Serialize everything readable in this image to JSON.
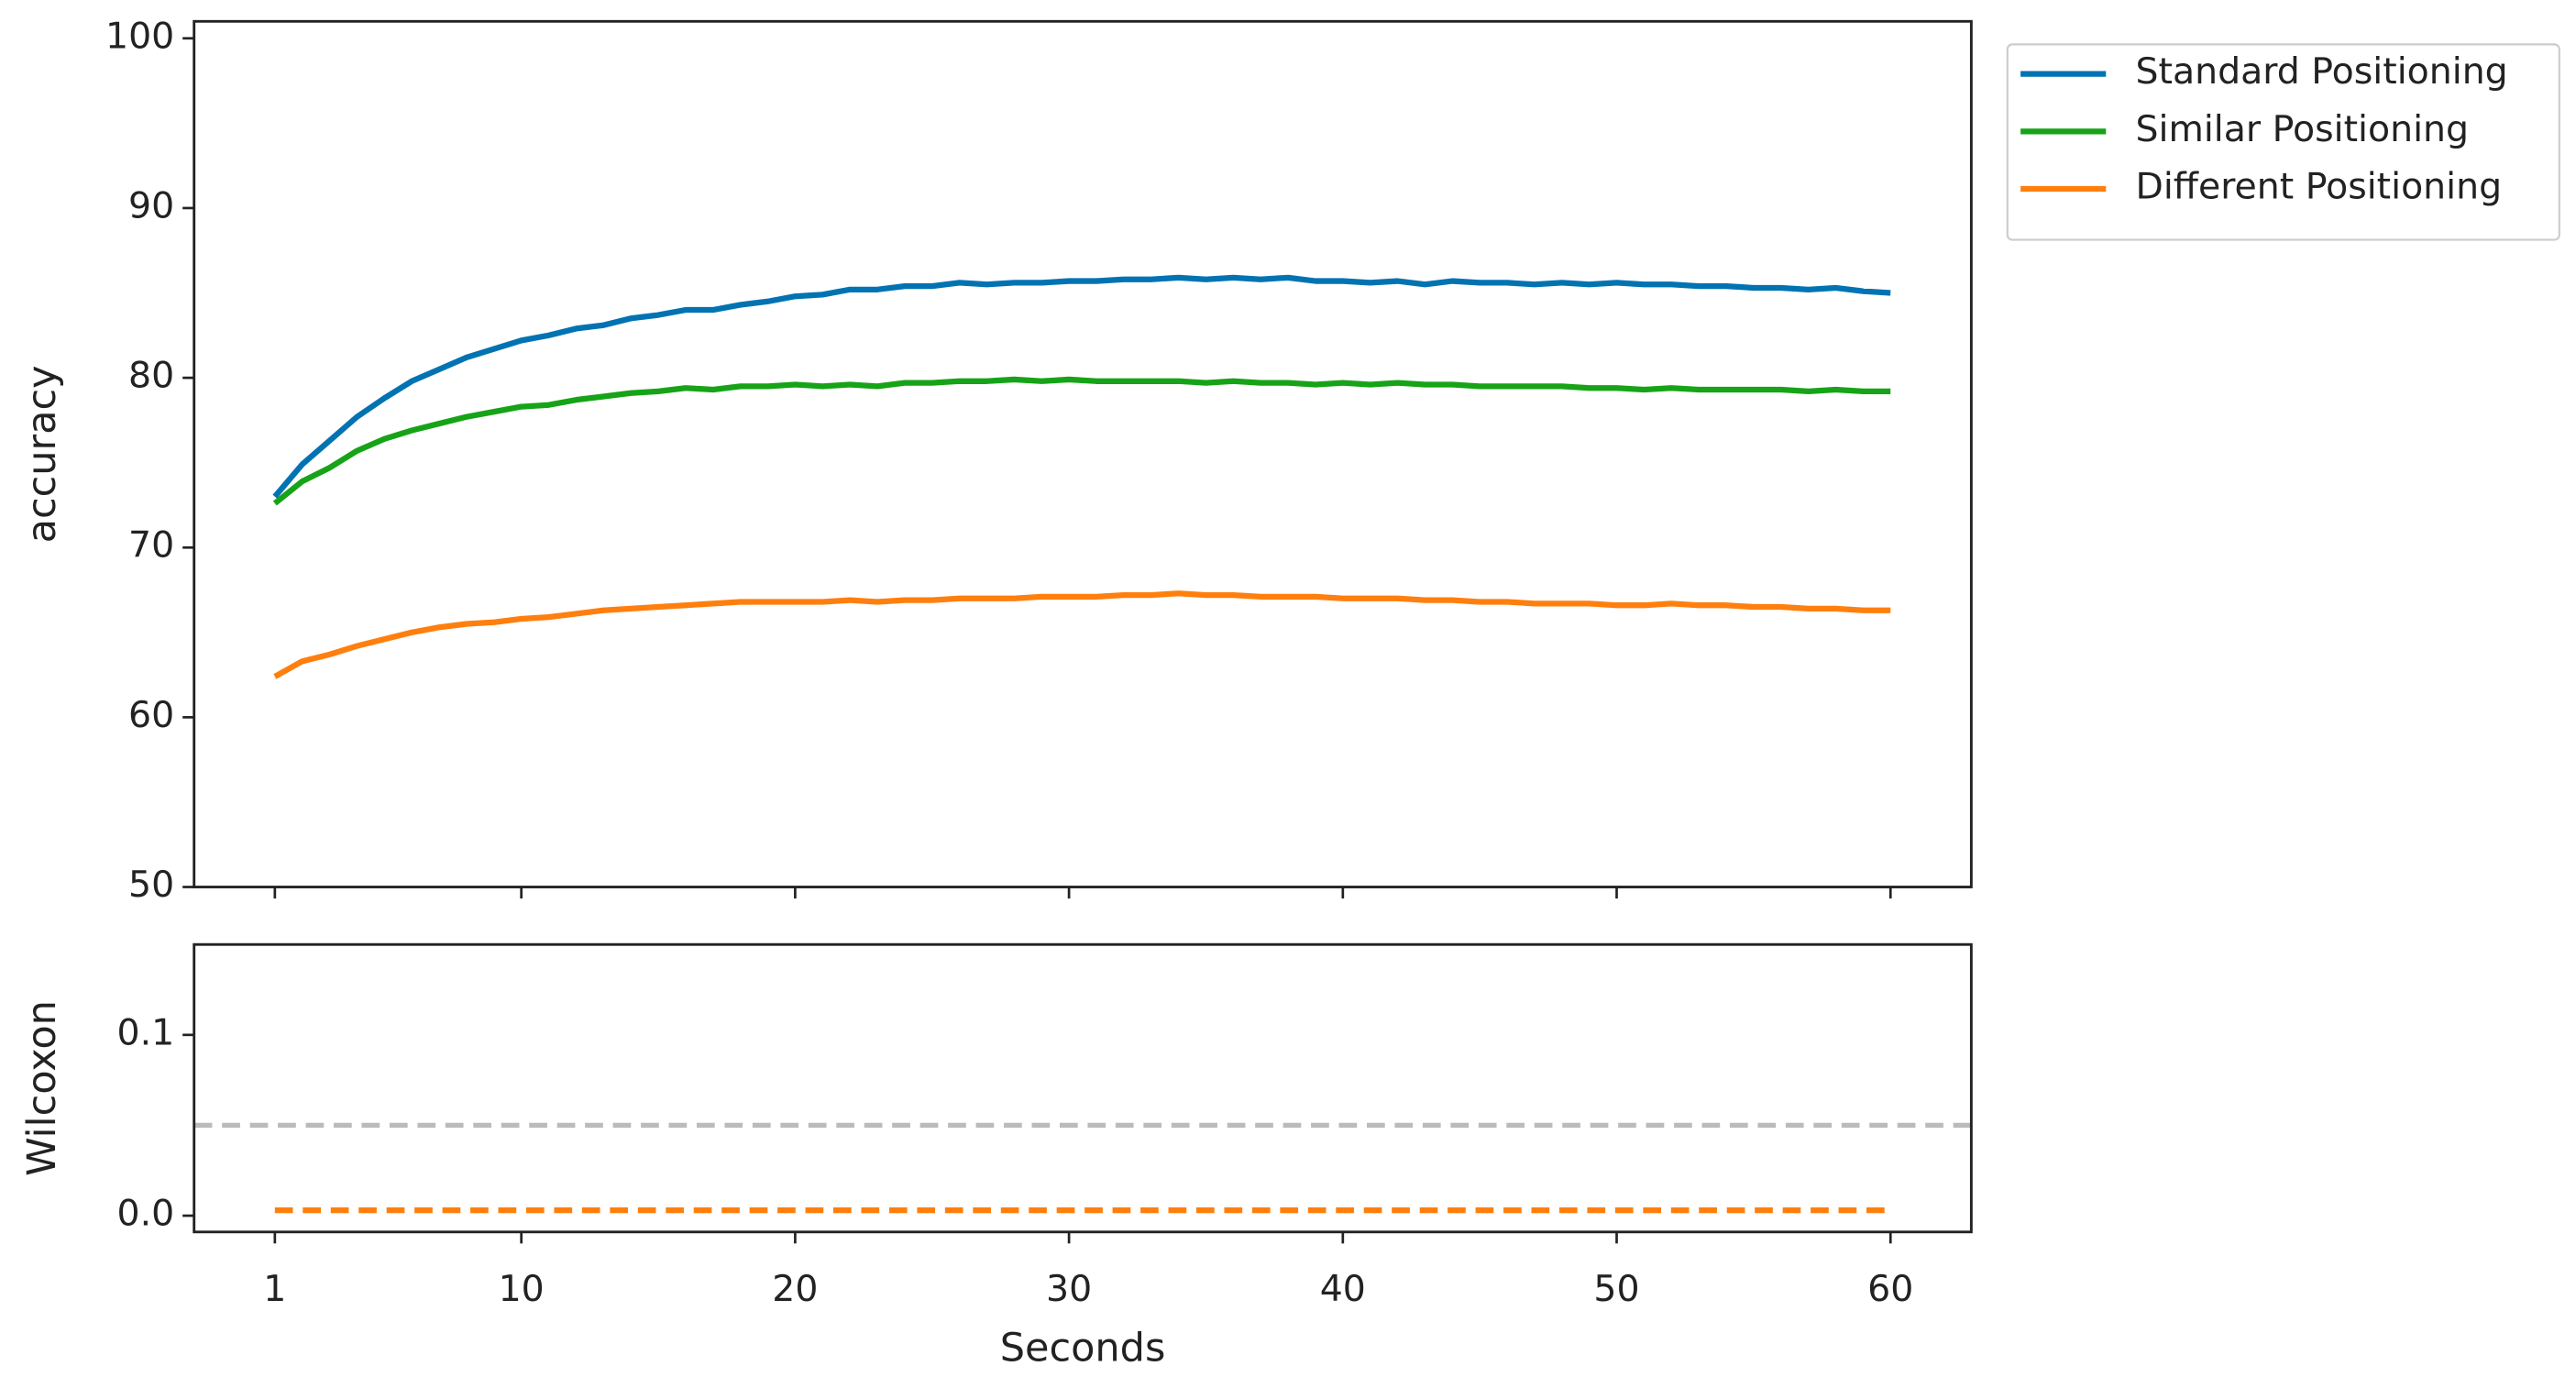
{
  "chart_data": [
    {
      "type": "line",
      "ylabel": "accuracy",
      "x": [
        1,
        2,
        3,
        4,
        5,
        6,
        7,
        8,
        9,
        10,
        11,
        12,
        13,
        14,
        15,
        16,
        17,
        18,
        19,
        20,
        21,
        22,
        23,
        24,
        25,
        26,
        27,
        28,
        29,
        30,
        31,
        32,
        33,
        34,
        35,
        36,
        37,
        38,
        39,
        40,
        41,
        42,
        43,
        44,
        45,
        46,
        47,
        48,
        49,
        50,
        51,
        52,
        53,
        54,
        55,
        56,
        57,
        58,
        59,
        60
      ],
      "xlim": [
        -1.95,
        62.95
      ],
      "ylim": [
        50,
        101
      ],
      "yticks": [
        50,
        60,
        70,
        80,
        90,
        100
      ],
      "legend": "outside upper right",
      "series": [
        {
          "name": "Standard Positioning",
          "color": "#0173b2",
          "values": [
            73.0,
            74.9,
            76.3,
            77.7,
            78.8,
            79.8,
            80.5,
            81.2,
            81.7,
            82.2,
            82.5,
            82.9,
            83.1,
            83.5,
            83.7,
            84.0,
            84.0,
            84.3,
            84.5,
            84.8,
            84.9,
            85.2,
            85.2,
            85.4,
            85.4,
            85.6,
            85.5,
            85.6,
            85.6,
            85.7,
            85.7,
            85.8,
            85.8,
            85.9,
            85.8,
            85.9,
            85.8,
            85.9,
            85.7,
            85.7,
            85.6,
            85.7,
            85.5,
            85.7,
            85.6,
            85.6,
            85.5,
            85.6,
            85.5,
            85.6,
            85.5,
            85.5,
            85.4,
            85.4,
            85.3,
            85.3,
            85.2,
            85.3,
            85.1,
            85.0
          ]
        },
        {
          "name": "Similar Positioning",
          "color": "#17a317",
          "values": [
            72.6,
            73.9,
            74.7,
            75.7,
            76.4,
            76.9,
            77.3,
            77.7,
            78.0,
            78.3,
            78.4,
            78.7,
            78.9,
            79.1,
            79.2,
            79.4,
            79.3,
            79.5,
            79.5,
            79.6,
            79.5,
            79.6,
            79.5,
            79.7,
            79.7,
            79.8,
            79.8,
            79.9,
            79.8,
            79.9,
            79.8,
            79.8,
            79.8,
            79.8,
            79.7,
            79.8,
            79.7,
            79.7,
            79.6,
            79.7,
            79.6,
            79.7,
            79.6,
            79.6,
            79.5,
            79.5,
            79.5,
            79.5,
            79.4,
            79.4,
            79.3,
            79.4,
            79.3,
            79.3,
            79.3,
            79.3,
            79.2,
            79.3,
            79.2,
            79.2
          ]
        },
        {
          "name": "Different Positioning",
          "color": "#ff7f0e",
          "values": [
            62.4,
            63.3,
            63.7,
            64.2,
            64.6,
            65.0,
            65.3,
            65.5,
            65.6,
            65.8,
            65.9,
            66.1,
            66.3,
            66.4,
            66.5,
            66.6,
            66.7,
            66.8,
            66.8,
            66.8,
            66.8,
            66.9,
            66.8,
            66.9,
            66.9,
            67.0,
            67.0,
            67.0,
            67.1,
            67.1,
            67.1,
            67.2,
            67.2,
            67.3,
            67.2,
            67.2,
            67.1,
            67.1,
            67.1,
            67.0,
            67.0,
            67.0,
            66.9,
            66.9,
            66.8,
            66.8,
            66.7,
            66.7,
            66.7,
            66.6,
            66.6,
            66.7,
            66.6,
            66.6,
            66.5,
            66.5,
            66.4,
            66.4,
            66.3,
            66.3
          ]
        }
      ]
    },
    {
      "type": "line",
      "ylabel": "Wilcoxon",
      "xlabel": "Seconds",
      "x": [
        1,
        2,
        3,
        4,
        5,
        6,
        7,
        8,
        9,
        10,
        11,
        12,
        13,
        14,
        15,
        16,
        17,
        18,
        19,
        20,
        21,
        22,
        23,
        24,
        25,
        26,
        27,
        28,
        29,
        30,
        31,
        32,
        33,
        34,
        35,
        36,
        37,
        38,
        39,
        40,
        41,
        42,
        43,
        44,
        45,
        46,
        47,
        48,
        49,
        50,
        51,
        52,
        53,
        54,
        55,
        56,
        57,
        58,
        59,
        60
      ],
      "xlim": [
        -1.95,
        62.95
      ],
      "xticks": [
        1,
        10,
        20,
        30,
        40,
        50,
        60
      ],
      "ylim": [
        -0.009,
        0.15
      ],
      "yticks": [
        {
          "value": 0,
          "label": "0.0"
        },
        0.1
      ],
      "hlines": [
        {
          "value": 0.05,
          "color": "#bbbbbb",
          "dash": true
        }
      ],
      "series": [
        {
          "color": "#ff7f0e",
          "dash": true,
          "values": [
            0.003,
            0.003,
            0.003,
            0.003,
            0.003,
            0.003,
            0.003,
            0.003,
            0.003,
            0.003,
            0.003,
            0.003,
            0.003,
            0.003,
            0.003,
            0.003,
            0.003,
            0.003,
            0.003,
            0.003,
            0.003,
            0.003,
            0.003,
            0.003,
            0.003,
            0.003,
            0.003,
            0.003,
            0.003,
            0.003,
            0.003,
            0.003,
            0.003,
            0.003,
            0.003,
            0.003,
            0.003,
            0.003,
            0.003,
            0.003,
            0.003,
            0.003,
            0.003,
            0.003,
            0.003,
            0.003,
            0.003,
            0.003,
            0.003,
            0.003,
            0.003,
            0.003,
            0.003,
            0.003,
            0.003,
            0.003,
            0.003,
            0.003,
            0.003,
            0.003
          ]
        }
      ]
    }
  ]
}
